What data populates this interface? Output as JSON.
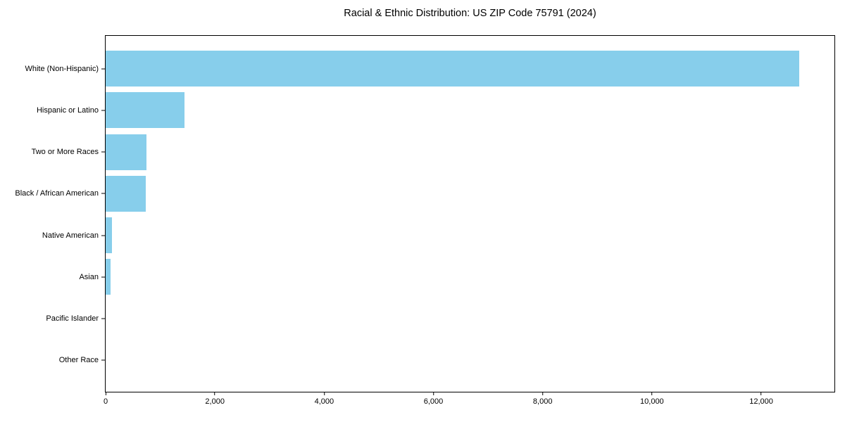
{
  "figure": {
    "background": "#ffffff"
  },
  "chart_data": {
    "type": "bar",
    "orientation": "horizontal",
    "title": "Racial & Ethnic Distribution: US ZIP Code 75791 (2024)",
    "categories": [
      "White (Non-Hispanic)",
      "Hispanic or Latino",
      "Two or More Races",
      "Black / African American",
      "Native American",
      "Asian",
      "Pacific Islander",
      "Other Race"
    ],
    "values": [
      12700,
      1440,
      745,
      735,
      110,
      95,
      0,
      0
    ],
    "xlabel": "",
    "ylabel": "",
    "xlim": [
      0,
      13340
    ],
    "xticks": [
      0,
      2000,
      4000,
      6000,
      8000,
      10000,
      12000
    ],
    "xtick_labels": [
      "0",
      "2,000",
      "4,000",
      "6,000",
      "8,000",
      "10,000",
      "12,000"
    ],
    "bar_color": "#87CEEB",
    "grid": false,
    "legend_position": "none"
  }
}
